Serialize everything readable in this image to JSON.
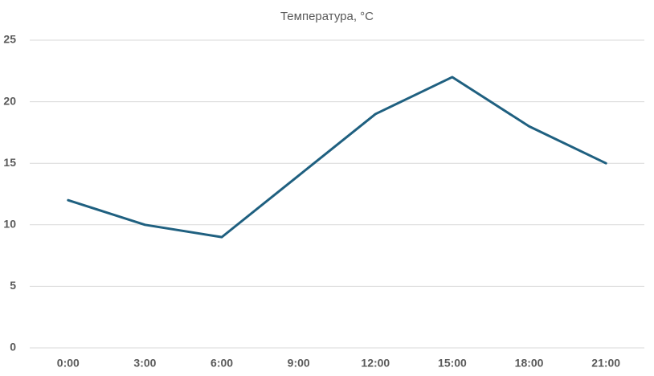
{
  "chart_data": {
    "type": "line",
    "title": "Температура, °C",
    "categories": [
      "0:00",
      "3:00",
      "6:00",
      "9:00",
      "12:00",
      "15:00",
      "18:00",
      "21:00"
    ],
    "values": [
      12,
      10,
      9,
      14,
      19,
      22,
      18,
      15
    ],
    "color": "#1f6080",
    "ylim": [
      0,
      25
    ],
    "yticks": [
      0,
      5,
      10,
      15,
      20,
      25
    ],
    "grid": true
  }
}
